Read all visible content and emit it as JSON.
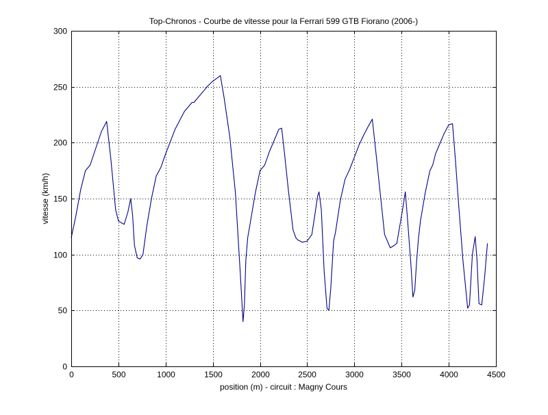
{
  "chart_data": {
    "type": "line",
    "title": "Top-Chronos - Courbe de vitesse pour la Ferrari 599 GTB Fiorano (2006-)",
    "xlabel": "position (m) - circuit : Magny Cours",
    "ylabel": "vitesse (km/h)",
    "xlim": [
      0,
      4500
    ],
    "ylim": [
      0,
      300
    ],
    "xticks": [
      0,
      500,
      1000,
      1500,
      2000,
      2500,
      3000,
      3500,
      4000,
      4500
    ],
    "yticks": [
      0,
      50,
      100,
      150,
      200,
      250,
      300
    ],
    "grid": true,
    "line_color": "#00008b",
    "series": [
      {
        "x": [
          0,
          50,
          100,
          150,
          200,
          260,
          320,
          375,
          420,
          470,
          500,
          560,
          600,
          630,
          650,
          670,
          700,
          730,
          760,
          800,
          850,
          900,
          950,
          1000,
          1100,
          1200,
          1280,
          1300,
          1350,
          1400,
          1450,
          1500,
          1550,
          1580,
          1620,
          1680,
          1740,
          1790,
          1820,
          1835,
          1850,
          1870,
          1900,
          1950,
          2000,
          2050,
          2100,
          2150,
          2200,
          2230,
          2260,
          2300,
          2350,
          2380,
          2400,
          2450,
          2500,
          2550,
          2580,
          2610,
          2625,
          2650,
          2680,
          2710,
          2730,
          2750,
          2780,
          2800,
          2850,
          2900,
          2950,
          3000,
          3050,
          3100,
          3150,
          3190,
          3230,
          3280,
          3320,
          3350,
          3380,
          3420,
          3450,
          3480,
          3520,
          3540,
          3560,
          3600,
          3620,
          3640,
          3660,
          3680,
          3700,
          3750,
          3800,
          3830,
          3860,
          3900,
          3950,
          4000,
          4040,
          4070,
          4100,
          4150,
          4200,
          4220,
          4250,
          4280,
          4300,
          4320,
          4350,
          4380,
          4410
        ],
        "y": [
          115,
          135,
          158,
          175,
          180,
          195,
          210,
          219,
          185,
          140,
          130,
          127,
          138,
          150,
          135,
          108,
          97,
          96,
          100,
          125,
          150,
          170,
          178,
          190,
          212,
          228,
          236,
          236,
          241,
          246,
          251,
          255,
          258,
          260,
          240,
          205,
          155,
          85,
          40,
          55,
          95,
          115,
          130,
          155,
          175,
          180,
          192,
          202,
          212,
          213,
          190,
          158,
          122,
          115,
          113,
          111,
          112,
          118,
          135,
          152,
          156,
          140,
          85,
          52,
          50,
          70,
          112,
          120,
          148,
          167,
          176,
          187,
          198,
          207,
          215,
          221,
          190,
          150,
          118,
          112,
          106,
          108,
          110,
          125,
          145,
          156,
          135,
          90,
          62,
          68,
          95,
          115,
          130,
          155,
          175,
          180,
          190,
          198,
          208,
          216,
          217,
          185,
          150,
          95,
          52,
          55,
          100,
          116,
          95,
          56,
          55,
          80,
          110
        ]
      }
    ]
  }
}
